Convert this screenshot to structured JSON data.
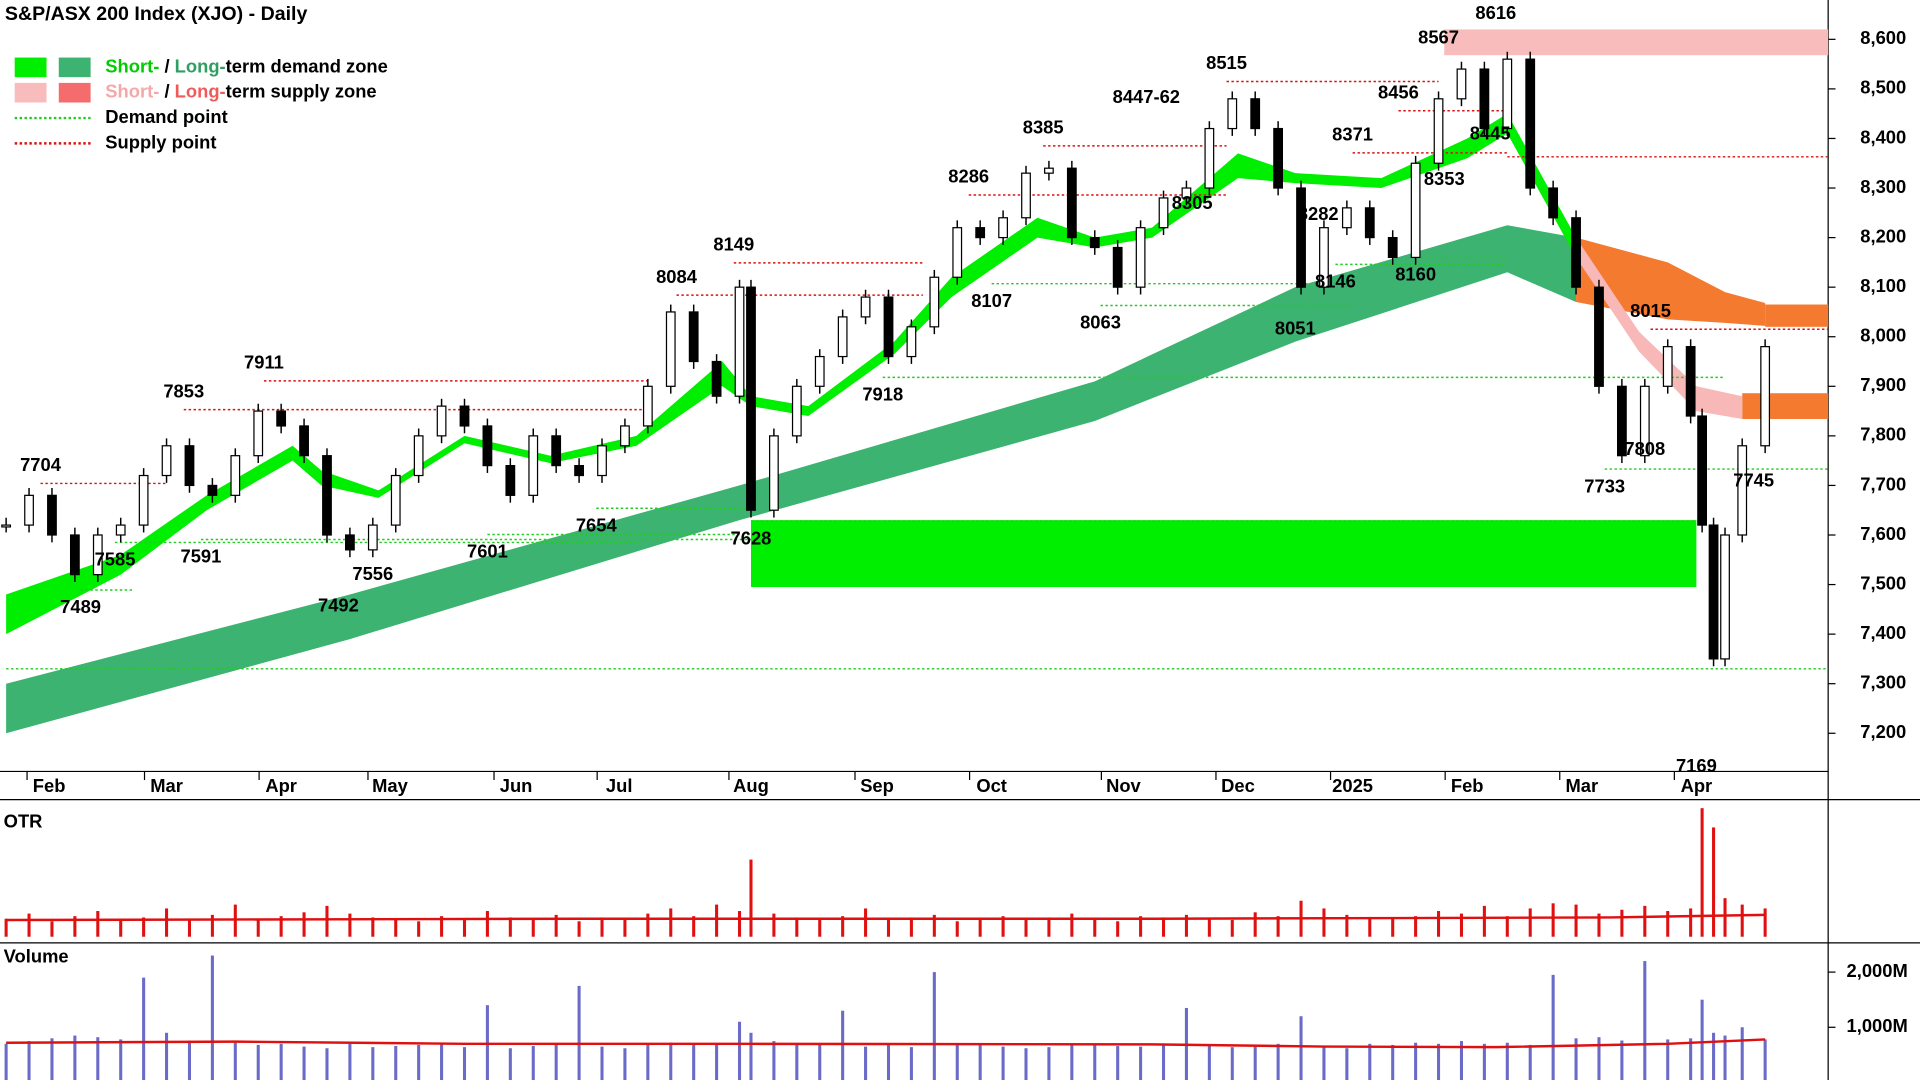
{
  "chart_data": {
    "type": "candlestick",
    "title": "S&P/ASX 200 Index (XJO) - Daily",
    "legend": [
      {
        "parts": [
          "Short-",
          " / ",
          "Long-",
          "term demand zone"
        ],
        "swatches": [
          "#00ee00",
          "#3cb371"
        ],
        "part_colors": [
          "#00cc00",
          "#000000",
          "#2e9e62",
          "#000000"
        ]
      },
      {
        "parts": [
          "Short-",
          " / ",
          "Long-",
          "term supply zone"
        ],
        "swatches": [
          "#f9bcbc",
          "#f46c6c"
        ],
        "part_colors": [
          "#f4a8a8",
          "#000000",
          "#f05a5a",
          "#000000"
        ]
      },
      {
        "parts": [
          "Demand point"
        ],
        "line": "#22cc22"
      },
      {
        "parts": [
          "Supply point"
        ],
        "line": "#dd1111"
      }
    ],
    "x": [
      0,
      4,
      8,
      12,
      16,
      20,
      24,
      28,
      32,
      36,
      40,
      44,
      48,
      52,
      56,
      60,
      64,
      68,
      72,
      76,
      80,
      84,
      88,
      92,
      96,
      100,
      104,
      108,
      112,
      116,
      120,
      124,
      128,
      130,
      134,
      138,
      142,
      146,
      150,
      154,
      158,
      162,
      166,
      170,
      174,
      178,
      182,
      186,
      190,
      194,
      198,
      202,
      206,
      210,
      214,
      218,
      222,
      226,
      230,
      234,
      238,
      242,
      246,
      250,
      254,
      258,
      262,
      266,
      270,
      274,
      278,
      282,
      286,
      290,
      294,
      296,
      298,
      300,
      303,
      307
    ],
    "close": [
      7620,
      7680,
      7600,
      7520,
      7600,
      7620,
      7720,
      7780,
      7700,
      7680,
      7760,
      7850,
      7820,
      7760,
      7600,
      7570,
      7620,
      7720,
      7800,
      7860,
      7820,
      7740,
      7680,
      7800,
      7740,
      7720,
      7780,
      7820,
      7900,
      8050,
      7950,
      7880,
      8100,
      7650,
      7800,
      7900,
      7960,
      8040,
      8080,
      7960,
      8020,
      8120,
      8220,
      8200,
      8240,
      8330,
      8340,
      8200,
      8180,
      8100,
      8220,
      8280,
      8300,
      8420,
      8480,
      8420,
      8300,
      8100,
      8220,
      8260,
      8200,
      8160,
      8350,
      8480,
      8540,
      8420,
      8560,
      8300,
      8240,
      8100,
      7900,
      7760,
      7900,
      7980,
      7840,
      7620,
      7350,
      7600,
      7780,
      7980
    ],
    "xlim": [
      0,
      318
    ],
    "xticks": [
      {
        "value": 7.5,
        "label": "Feb"
      },
      {
        "value": 28,
        "label": "Mar"
      },
      {
        "value": 48,
        "label": "Apr"
      },
      {
        "value": 67,
        "label": "May"
      },
      {
        "value": 89,
        "label": "Jun"
      },
      {
        "value": 107,
        "label": "Jul"
      },
      {
        "value": 130,
        "label": "Aug"
      },
      {
        "value": 152,
        "label": "Sep"
      },
      {
        "value": 172,
        "label": "Oct"
      },
      {
        "value": 195,
        "label": "Nov"
      },
      {
        "value": 215,
        "label": "Dec"
      },
      {
        "value": 235,
        "label": "2025"
      },
      {
        "value": 255,
        "label": "Feb"
      },
      {
        "value": 275,
        "label": "Mar"
      },
      {
        "value": 295,
        "label": "Apr"
      }
    ],
    "ylim": [
      7123,
      8625
    ],
    "yticks": [
      {
        "value": 7200,
        "label": "7,200"
      },
      {
        "value": 7300,
        "label": "7,300"
      },
      {
        "value": 7400,
        "label": "7,400"
      },
      {
        "value": 7500,
        "label": "7,500"
      },
      {
        "value": 7600,
        "label": "7,600"
      },
      {
        "value": 7700,
        "label": "7,700"
      },
      {
        "value": 7800,
        "label": "7,800"
      },
      {
        "value": 7900,
        "label": "7,900"
      },
      {
        "value": 8000,
        "label": "8,000"
      },
      {
        "value": 8100,
        "label": "8,100"
      },
      {
        "value": 8200,
        "label": "8,200"
      },
      {
        "value": 8300,
        "label": "8,300"
      },
      {
        "value": 8400,
        "label": "8,400"
      },
      {
        "value": 8500,
        "label": "8,500"
      },
      {
        "value": 8600,
        "label": "8,600"
      }
    ],
    "highs": [
      {
        "x": 6,
        "value": 7704
      },
      {
        "x": 31,
        "value": 7853
      },
      {
        "x": 45,
        "value": 7911
      },
      {
        "x": 117,
        "value": 8084
      },
      {
        "x": 127,
        "value": 8149
      },
      {
        "x": 168,
        "value": 8286
      },
      {
        "x": 181,
        "value": 8385
      },
      {
        "x": 199,
        "value": 8447,
        "label": "8447-62"
      },
      {
        "x": 213,
        "value": 8515
      },
      {
        "x": 235,
        "value": 8371
      },
      {
        "x": 243,
        "value": 8456
      },
      {
        "x": 250,
        "value": 8567
      },
      {
        "x": 260,
        "value": 8616
      },
      {
        "x": 287,
        "value": 8015
      }
    ],
    "lows": [
      {
        "x": 13,
        "value": 7489
      },
      {
        "x": 19,
        "value": 7585
      },
      {
        "x": 34,
        "value": 7591
      },
      {
        "x": 58,
        "value": 7492
      },
      {
        "x": 64,
        "value": 7556
      },
      {
        "x": 84,
        "value": 7601
      },
      {
        "x": 103,
        "value": 7654
      },
      {
        "x": 130,
        "value": 7628
      },
      {
        "x": 153,
        "value": 7918
      },
      {
        "x": 172,
        "value": 8107
      },
      {
        "x": 191,
        "value": 8063
      },
      {
        "x": 207,
        "value": 8305
      },
      {
        "x": 225,
        "value": 8051
      },
      {
        "x": 232,
        "value": 8146
      },
      {
        "x": 229,
        "value": 8282
      },
      {
        "x": 246,
        "value": 8160
      },
      {
        "x": 251,
        "value": 8353
      },
      {
        "x": 259,
        "value": 8445
      },
      {
        "x": 279,
        "value": 7733
      },
      {
        "x": 286,
        "value": 7808
      },
      {
        "x": 295,
        "value": 7169
      },
      {
        "x": 305,
        "value": 7745
      }
    ],
    "long_demand_band": {
      "color": "#3cb371",
      "x": [
        0,
        60,
        128,
        190,
        225,
        262,
        274
      ],
      "upper": [
        7300,
        7480,
        7700,
        7910,
        8100,
        8225,
        8200
      ],
      "lower": [
        7200,
        7390,
        7630,
        7830,
        7990,
        8130,
        8070
      ]
    },
    "long_supply_band": {
      "color": "#f47a30",
      "x": [
        274,
        290,
        300,
        307
      ],
      "upper": [
        8200,
        8150,
        8090,
        8068
      ],
      "lower": [
        8070,
        8035,
        8028,
        8022
      ]
    },
    "short_demand_band": {
      "color": "#00ee00",
      "x": [
        0,
        20,
        35,
        50,
        55,
        65,
        80,
        95,
        110,
        125,
        130,
        140,
        155,
        165,
        180,
        190,
        200,
        215,
        225,
        240,
        255,
        262,
        274
      ],
      "upper": [
        7480,
        7560,
        7680,
        7780,
        7730,
        7690,
        7800,
        7760,
        7800,
        7950,
        7880,
        7860,
        7990,
        8120,
        8240,
        8200,
        8220,
        8370,
        8330,
        8320,
        8400,
        8450,
        8200
      ],
      "lower": [
        7400,
        7520,
        7650,
        7750,
        7700,
        7675,
        7785,
        7745,
        7780,
        7900,
        7860,
        7840,
        7965,
        8080,
        8200,
        8180,
        8200,
        8320,
        8310,
        8300,
        8360,
        8410,
        8160
      ]
    },
    "short_supply_band": {
      "color": "#f9b8b8",
      "x": [
        274,
        285,
        295,
        303
      ],
      "upper": [
        8200,
        8010,
        7900,
        7880
      ],
      "lower": [
        8160,
        7970,
        7850,
        7834
      ]
    },
    "zones": [
      {
        "color": "#00ee00",
        "x0": 130,
        "x1": 295,
        "top": 7630,
        "bottom": 7495
      },
      {
        "color": "#f9bcbc",
        "x0": 251,
        "x1": 318,
        "top": 8620,
        "bottom": 8568
      },
      {
        "color": "#f47a30",
        "x0": 303,
        "x1": 318,
        "top": 7886,
        "bottom": 7834
      },
      {
        "color": "#f47a30",
        "x0": 307,
        "x1": 318,
        "top": 8065,
        "bottom": 8020
      }
    ],
    "supply_points": [
      {
        "value": 7704,
        "x0": 6,
        "x1": 28
      },
      {
        "value": 7853,
        "x0": 31,
        "x1": 112
      },
      {
        "value": 7911,
        "x0": 45,
        "x1": 112
      },
      {
        "value": 8084,
        "x0": 117,
        "x1": 160
      },
      {
        "value": 8149,
        "x0": 127,
        "x1": 160
      },
      {
        "value": 8286,
        "x0": 168,
        "x1": 213
      },
      {
        "value": 8385,
        "x0": 181,
        "x1": 213
      },
      {
        "value": 8515,
        "x0": 213,
        "x1": 250
      },
      {
        "value": 8371,
        "x0": 235,
        "x1": 262
      },
      {
        "value": 8456,
        "x0": 243,
        "x1": 262
      },
      {
        "value": 8363,
        "x0": 262,
        "x1": 318
      },
      {
        "value": 8015,
        "x0": 287,
        "x1": 318
      }
    ],
    "demand_points": [
      {
        "value": 7489,
        "x0": 13,
        "x1": 22
      },
      {
        "value": 7585,
        "x0": 19,
        "x1": 110
      },
      {
        "value": 7591,
        "x0": 34,
        "x1": 130
      },
      {
        "value": 7601,
        "x0": 84,
        "x1": 130
      },
      {
        "value": 7654,
        "x0": 103,
        "x1": 130
      },
      {
        "value": 7628,
        "x0": 130,
        "x1": 295
      },
      {
        "value": 7918,
        "x0": 153,
        "x1": 300
      },
      {
        "value": 8107,
        "x0": 172,
        "x1": 230
      },
      {
        "value": 8063,
        "x0": 191,
        "x1": 235
      },
      {
        "value": 8146,
        "x0": 232,
        "x1": 262
      },
      {
        "value": 8160,
        "x0": 246,
        "x1": 262
      },
      {
        "value": 7733,
        "x0": 279,
        "x1": 318
      },
      {
        "value": 7330,
        "x0": 0,
        "x1": 318
      }
    ],
    "otr": {
      "title": "OTR",
      "color": "#e01010",
      "ylim": [
        0,
        100
      ],
      "values": [
        14,
        18,
        12,
        16,
        20,
        13,
        15,
        22,
        14,
        17,
        25,
        13,
        16,
        19,
        24,
        18,
        15,
        14,
        12,
        16,
        13,
        20,
        15,
        14,
        17,
        12,
        15,
        13,
        18,
        22,
        16,
        25,
        20,
        60,
        18,
        15,
        14,
        16,
        22,
        13,
        15,
        17,
        12,
        14,
        16,
        13,
        15,
        18,
        14,
        12,
        16,
        15,
        17,
        14,
        13,
        19,
        16,
        28,
        22,
        17,
        15,
        14,
        16,
        20,
        18,
        24,
        16,
        22,
        26,
        25,
        18,
        21,
        24,
        20,
        22,
        100,
        85,
        30,
        25,
        22
      ],
      "average": {
        "x": [
          0,
          100,
          200,
          280,
          307
        ],
        "values": [
          13,
          14,
          14,
          15,
          17
        ]
      }
    },
    "volume": {
      "title": "Volume",
      "color": "#6a6ac8",
      "ylim": [
        0,
        2530
      ],
      "yticks": [
        {
          "value": 1000,
          "label": "1,000M"
        },
        {
          "value": 2000,
          "label": "2,000M"
        }
      ],
      "values": [
        700,
        750,
        800,
        850,
        820,
        780,
        1900,
        900,
        760,
        2300,
        720,
        680,
        700,
        650,
        620,
        700,
        640,
        660,
        680,
        700,
        640,
        1400,
        620,
        660,
        700,
        1750,
        650,
        620,
        700,
        720,
        680,
        700,
        1100,
        900,
        750,
        700,
        680,
        1300,
        650,
        700,
        640,
        2000,
        680,
        700,
        650,
        620,
        640,
        700,
        680,
        660,
        650,
        700,
        1350,
        680,
        640,
        660,
        700,
        1200,
        650,
        620,
        700,
        680,
        720,
        700,
        750,
        700,
        720,
        680,
        1950,
        800,
        820,
        760,
        2200,
        780,
        800,
        1500,
        900,
        850,
        1000,
        780
      ],
      "average": {
        "x": [
          0,
          40,
          80,
          130,
          200,
          230,
          260,
          290,
          307
        ],
        "values": [
          720,
          740,
          700,
          700,
          690,
          650,
          640,
          700,
          780
        ]
      }
    }
  }
}
